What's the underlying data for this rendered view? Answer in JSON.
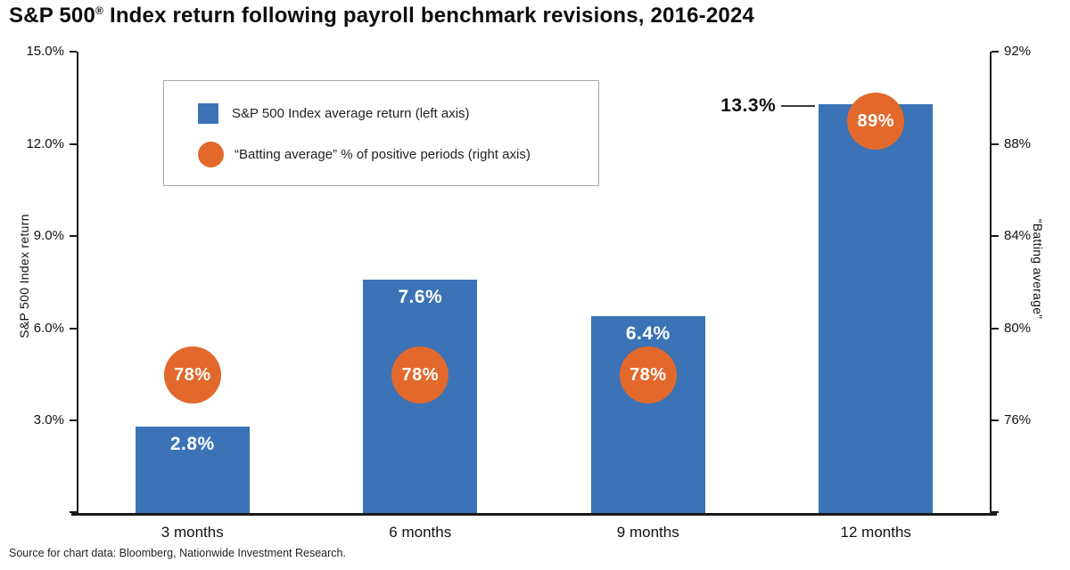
{
  "title": {
    "prefix": "S&P 500",
    "registered": "®",
    "suffix": " Index return following payroll benchmark revisions, 2016-2024"
  },
  "source": "Source for chart data: Bloomberg, Nationwide Investment Research.",
  "legend": {
    "items": [
      {
        "marker": "square",
        "label": "S&P 500 Index average return (left axis)"
      },
      {
        "marker": "circle",
        "label": "“Batting average” % of positive periods (right axis)"
      }
    ]
  },
  "chart_data": {
    "type": "bar",
    "title": "S&P 500 Index return following payroll benchmark revisions, 2016-2024",
    "categories": [
      "3 months",
      "6 months",
      "9 months",
      "12 months"
    ],
    "series": [
      {
        "name": "S&P 500 Index average return (left axis)",
        "axis": "left",
        "values": [
          2.8,
          7.6,
          6.4,
          13.3
        ],
        "labels": [
          "2.8%",
          "7.6%",
          "6.4%",
          "13.3%"
        ],
        "label_placement": [
          "inside",
          "inside",
          "inside",
          "callout-left"
        ]
      },
      {
        "name": "“Batting average” % of positive periods (right axis)",
        "axis": "right",
        "values": [
          78,
          78,
          78,
          89
        ],
        "labels": [
          "78%",
          "78%",
          "78%",
          "89%"
        ]
      }
    ],
    "left_axis": {
      "title": "S&P 500 Index return",
      "min": 0,
      "max": 15,
      "ticks": [
        {
          "value": 3,
          "label": "3.0%"
        },
        {
          "value": 6,
          "label": "6.0%"
        },
        {
          "value": 9,
          "label": "9.0%"
        },
        {
          "value": 12,
          "label": "12.0%"
        },
        {
          "value": 15,
          "label": "15.0%"
        }
      ]
    },
    "right_axis": {
      "title": "“Batting average”",
      "min": 72,
      "max": 92,
      "ticks": [
        {
          "value": 76,
          "label": "76%"
        },
        {
          "value": 80,
          "label": "80%"
        },
        {
          "value": 84,
          "label": "84%"
        },
        {
          "value": 88,
          "label": "88%"
        },
        {
          "value": 92,
          "label": "92%"
        }
      ]
    },
    "colors": {
      "bar": "#3B73B6",
      "circle": "#E2692B"
    },
    "grid": false,
    "legend_position": "top-left-inside"
  }
}
